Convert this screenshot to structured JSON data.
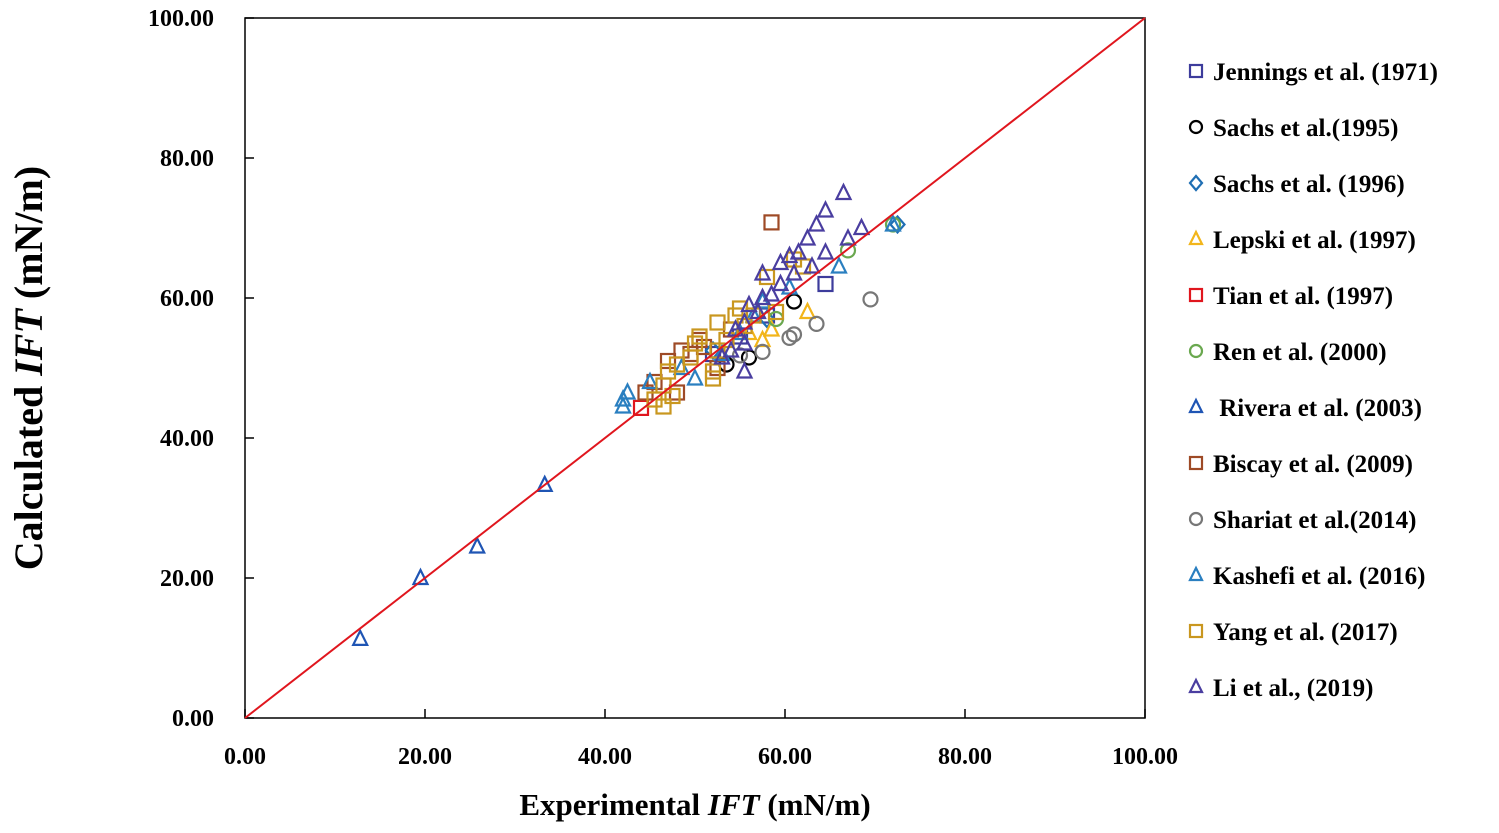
{
  "chart_data": {
    "type": "scatter",
    "title": "",
    "xlabel": {
      "prefix": "Experimental ",
      "italic": "IFT",
      "suffix": " (mN/m)"
    },
    "ylabel": {
      "prefix": "Calculated ",
      "italic": "IFT",
      "suffix": " (mN/m)"
    },
    "xlim": [
      0,
      100
    ],
    "ylim": [
      0,
      100
    ],
    "x_ticks": [
      "0.00",
      "20.00",
      "40.00",
      "60.00",
      "80.00",
      "100.00"
    ],
    "y_ticks": [
      "0.00",
      "20.00",
      "40.00",
      "60.00",
      "80.00",
      "100.00"
    ],
    "grid": false,
    "legend_position": "right",
    "reference_line": {
      "name": "y = x",
      "color": "#e0161e",
      "points": [
        [
          0,
          0
        ],
        [
          100,
          100
        ]
      ]
    },
    "series": [
      {
        "name": "Jennings et al. (1971)",
        "marker": "square",
        "color": "#3d3c9c",
        "points": [
          [
            64.5,
            62.0
          ],
          [
            58.0,
            57.5
          ],
          [
            55.0,
            54.5
          ],
          [
            52.0,
            52.0
          ]
        ]
      },
      {
        "name": "Sachs et al.(1995)",
        "marker": "circle",
        "color": "#000000",
        "points": [
          [
            61.0,
            59.5
          ],
          [
            56.0,
            51.5
          ],
          [
            53.5,
            50.5
          ]
        ]
      },
      {
        "name": "Sachs et al. (1996)",
        "marker": "diamond",
        "color": "#1f6fb4",
        "points": [
          [
            72.5,
            70.5
          ],
          [
            58.0,
            57.0
          ],
          [
            52.0,
            52.5
          ]
        ]
      },
      {
        "name": "Lepski et al. (1997)",
        "marker": "triangle",
        "color": "#f2b51a",
        "points": [
          [
            62.5,
            58.0
          ],
          [
            58.5,
            55.5
          ],
          [
            57.5,
            54.0
          ],
          [
            56.0,
            55.0
          ]
        ]
      },
      {
        "name": "Tian et al. (1997)",
        "marker": "square",
        "color": "#e0161e",
        "points": [
          [
            44.0,
            44.3
          ]
        ]
      },
      {
        "name": "Ren et al. (2000)",
        "marker": "circle",
        "color": "#6aa84f",
        "points": [
          [
            67.0,
            66.8
          ],
          [
            72.0,
            70.5
          ],
          [
            59.0,
            57.0
          ]
        ]
      },
      {
        "name": " Rivera et al. (2003)",
        "marker": "triangle",
        "color": "#1f55b4",
        "points": [
          [
            12.8,
            11.3
          ],
          [
            19.5,
            20.0
          ],
          [
            25.8,
            24.5
          ],
          [
            33.3,
            33.3
          ]
        ]
      },
      {
        "name": "Biscay et al. (2009)",
        "marker": "square",
        "color": "#9e4a26",
        "points": [
          [
            58.5,
            70.8
          ],
          [
            44.5,
            46.5
          ],
          [
            45.5,
            48.0
          ],
          [
            47.0,
            51.0
          ],
          [
            48.5,
            52.5
          ],
          [
            49.5,
            52.0
          ],
          [
            51.0,
            53.0
          ],
          [
            52.5,
            50.0
          ],
          [
            54.0,
            55.5
          ],
          [
            48.0,
            46.5
          ],
          [
            50.5,
            54.0
          ]
        ]
      },
      {
        "name": "Shariat et al.(2014)",
        "marker": "circle",
        "color": "#777777",
        "points": [
          [
            69.5,
            59.8
          ],
          [
            63.5,
            56.3
          ],
          [
            61.0,
            54.8
          ],
          [
            60.5,
            54.3
          ],
          [
            57.5,
            52.3
          ],
          [
            55.0,
            51.8
          ]
        ]
      },
      {
        "name": "Kashefi et al. (2016)",
        "marker": "triangle",
        "color": "#2a7fc0",
        "points": [
          [
            42.0,
            45.5
          ],
          [
            42.5,
            46.5
          ],
          [
            45.0,
            48.0
          ],
          [
            50.0,
            48.5
          ],
          [
            53.0,
            52.0
          ],
          [
            55.0,
            55.0
          ],
          [
            56.5,
            57.5
          ],
          [
            60.5,
            61.5
          ],
          [
            66.0,
            64.5
          ],
          [
            72.0,
            70.5
          ],
          [
            42.0,
            44.5
          ],
          [
            48.5,
            50.0
          ],
          [
            57.5,
            59.5
          ]
        ]
      },
      {
        "name": "Yang et al. (2017)",
        "marker": "square",
        "color": "#c9971f",
        "points": [
          [
            45.5,
            45.5
          ],
          [
            46.5,
            44.5
          ],
          [
            46.5,
            47.5
          ],
          [
            47.0,
            49.5
          ],
          [
            48.0,
            50.5
          ],
          [
            50.0,
            53.5
          ],
          [
            50.5,
            54.5
          ],
          [
            52.0,
            48.5
          ],
          [
            52.0,
            49.5
          ],
          [
            52.5,
            52.5
          ],
          [
            52.5,
            56.5
          ],
          [
            53.5,
            54.0
          ],
          [
            55.0,
            58.5
          ],
          [
            55.5,
            56.0
          ],
          [
            56.5,
            57.5
          ],
          [
            58.0,
            63.0
          ],
          [
            59.0,
            58.0
          ],
          [
            61.0,
            65.5
          ],
          [
            62.0,
            64.5
          ],
          [
            47.5,
            46.0
          ],
          [
            49.5,
            51.5
          ],
          [
            54.5,
            57.5
          ]
        ]
      },
      {
        "name": "Li et al., (2019)",
        "marker": "triangle",
        "color": "#4a3ea0",
        "points": [
          [
            66.5,
            75.0
          ],
          [
            64.5,
            72.5
          ],
          [
            63.5,
            70.5
          ],
          [
            68.5,
            70.0
          ],
          [
            62.5,
            68.5
          ],
          [
            67.0,
            68.5
          ],
          [
            61.5,
            66.5
          ],
          [
            60.5,
            66.0
          ],
          [
            64.5,
            66.5
          ],
          [
            59.5,
            65.0
          ],
          [
            63.0,
            64.5
          ],
          [
            57.5,
            63.5
          ],
          [
            61.0,
            63.5
          ],
          [
            57.5,
            60.0
          ],
          [
            56.0,
            59.0
          ],
          [
            58.5,
            60.5
          ],
          [
            55.5,
            56.5
          ],
          [
            54.5,
            55.5
          ],
          [
            57.0,
            58.0
          ],
          [
            55.5,
            53.5
          ],
          [
            54.0,
            52.5
          ],
          [
            55.5,
            49.5
          ],
          [
            53.0,
            51.5
          ],
          [
            59.5,
            62.0
          ]
        ]
      }
    ]
  }
}
